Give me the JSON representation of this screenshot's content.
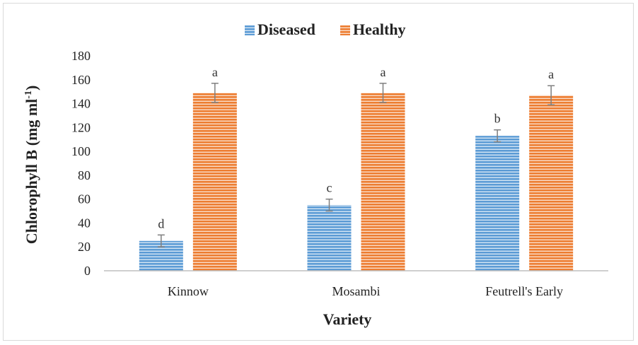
{
  "chart_data": {
    "type": "bar",
    "categories": [
      "Kinnow",
      "Mosambi",
      "Feutrell's Early"
    ],
    "series": [
      {
        "name": "Diseased",
        "color": "#5b9bd5",
        "values": [
          25,
          55,
          113
        ],
        "errors": [
          5,
          5,
          5
        ],
        "letters": [
          "d",
          "c",
          "b"
        ]
      },
      {
        "name": "Healthy",
        "color": "#ed7d31",
        "values": [
          149,
          149,
          147
        ],
        "errors": [
          8,
          8,
          8
        ],
        "letters": [
          "a",
          "a",
          "a"
        ]
      }
    ],
    "xlabel": "Variety",
    "ylabel": "Chlorophyll B (mg ml",
    "ylabel_superscript": "-1",
    "ylabel_suffix": ")",
    "ylim": [
      0,
      180
    ],
    "yticks": [
      "0",
      "20",
      "40",
      "60",
      "80",
      "100",
      "120",
      "140",
      "160",
      "180"
    ],
    "grid": false,
    "legend_position": "top"
  }
}
